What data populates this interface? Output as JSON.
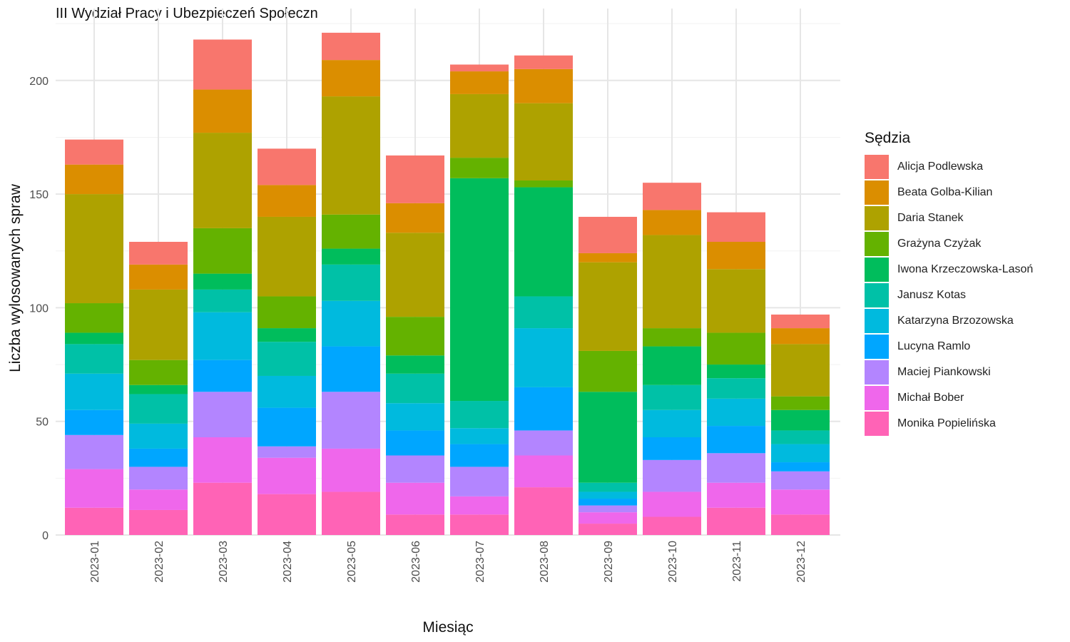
{
  "chart_data": {
    "type": "bar",
    "stacked": true,
    "title": "III Wydział Pracy i Ubezpieczeń Społeczn",
    "xlabel": "Miesiąc",
    "ylabel": "Liczba wylosowanych spraw",
    "ylim": [
      0,
      225
    ],
    "yticks": [
      0,
      50,
      100,
      150,
      200
    ],
    "grid": true,
    "legend_title": "Sędzia",
    "legend_position": "right",
    "categories": [
      "2023-01",
      "2023-02",
      "2023-03",
      "2023-04",
      "2023-05",
      "2023-06",
      "2023-07",
      "2023-08",
      "2023-09",
      "2023-10",
      "2023-11",
      "2023-12"
    ],
    "series": [
      {
        "name": "Alicja Podlewska",
        "color": "#F8766D",
        "values": [
          11,
          10,
          22,
          16,
          12,
          21,
          3,
          6,
          16,
          12,
          13,
          6
        ]
      },
      {
        "name": "Beata Golba-Kilian",
        "color": "#DB8E00",
        "values": [
          13,
          11,
          19,
          14,
          16,
          13,
          10,
          15,
          4,
          11,
          12,
          7
        ]
      },
      {
        "name": "Daria Stanek",
        "color": "#AEA200",
        "values": [
          48,
          31,
          42,
          35,
          52,
          37,
          28,
          34,
          39,
          41,
          28,
          23
        ]
      },
      {
        "name": "Grażyna Czyżak",
        "color": "#64B200",
        "values": [
          13,
          11,
          20,
          14,
          15,
          17,
          9,
          3,
          18,
          8,
          14,
          6
        ]
      },
      {
        "name": "Iwona Krzeczowska-Lasoń",
        "color": "#00BD5C",
        "values": [
          5,
          4,
          7,
          6,
          7,
          8,
          98,
          48,
          40,
          17,
          6,
          9
        ]
      },
      {
        "name": "Janusz Kotas",
        "color": "#00C1A7",
        "values": [
          13,
          13,
          10,
          15,
          16,
          13,
          12,
          14,
          4,
          11,
          9,
          6
        ]
      },
      {
        "name": "Katarzyna Brzozowska",
        "color": "#00BADE",
        "values": [
          16,
          11,
          21,
          14,
          20,
          12,
          7,
          26,
          3,
          12,
          12,
          8
        ]
      },
      {
        "name": "Lucyna Ramlo",
        "color": "#00A6FF",
        "values": [
          11,
          8,
          14,
          17,
          20,
          11,
          10,
          19,
          3,
          10,
          12,
          4
        ]
      },
      {
        "name": "Maciej Piankowski",
        "color": "#B385FF",
        "values": [
          15,
          10,
          20,
          5,
          25,
          12,
          13,
          11,
          3,
          14,
          13,
          8
        ]
      },
      {
        "name": "Michał Bober",
        "color": "#EF67EB",
        "values": [
          17,
          9,
          20,
          16,
          19,
          14,
          8,
          14,
          5,
          11,
          11,
          11
        ]
      },
      {
        "name": "Monika Popielińska",
        "color": "#FF63B6",
        "values": [
          12,
          11,
          23,
          18,
          19,
          9,
          9,
          21,
          5,
          8,
          12,
          9
        ]
      }
    ]
  }
}
